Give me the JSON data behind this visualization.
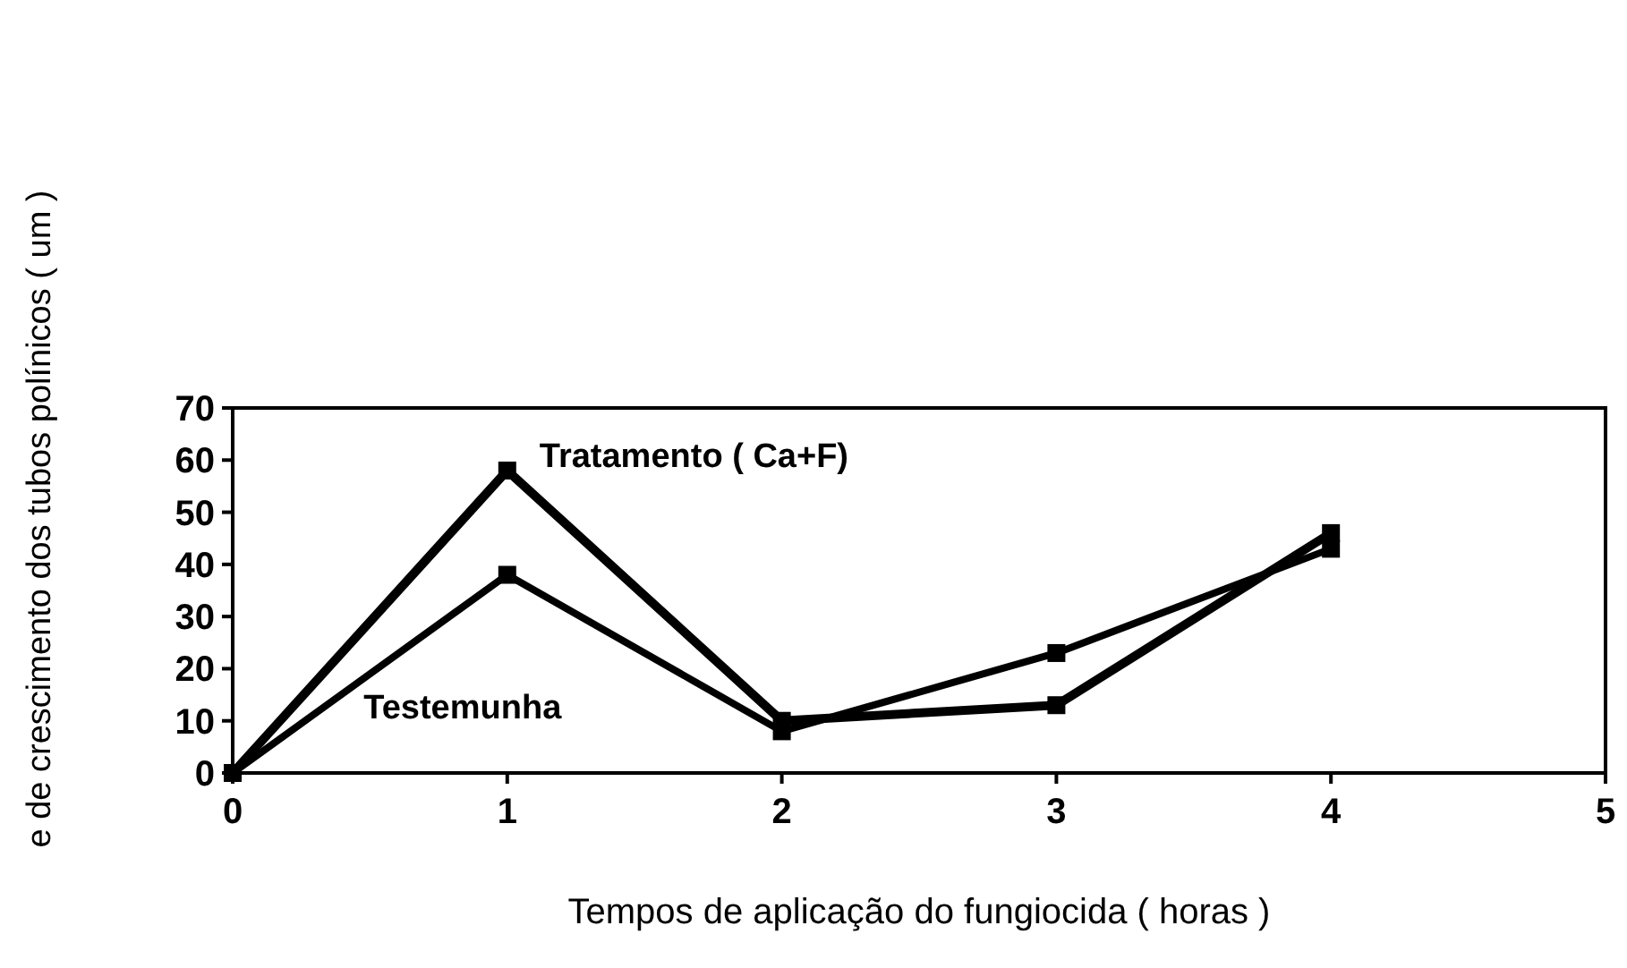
{
  "chart_data": {
    "type": "line",
    "xlabel": "Tempos de aplicação do fungiocida ( horas )",
    "ylabel": "e de crescimento dos tubos polínicos ( um )",
    "x": [
      0,
      1,
      2,
      3,
      4
    ],
    "series": [
      {
        "name": "Tratamento ( Ca+F)",
        "color": "#000000",
        "values": [
          0,
          58,
          10,
          13,
          46
        ]
      },
      {
        "name": "Testemunha",
        "color": "#000000",
        "values": [
          0,
          38,
          8,
          23,
          43
        ]
      }
    ],
    "xlim": [
      0,
      5
    ],
    "xticks": [
      0,
      1,
      2,
      3,
      4,
      5
    ],
    "ylim": [
      0,
      70
    ],
    "yticks": [
      0,
      10,
      20,
      30,
      40,
      50,
      60,
      70
    ],
    "marker": "square",
    "grid": false
  }
}
